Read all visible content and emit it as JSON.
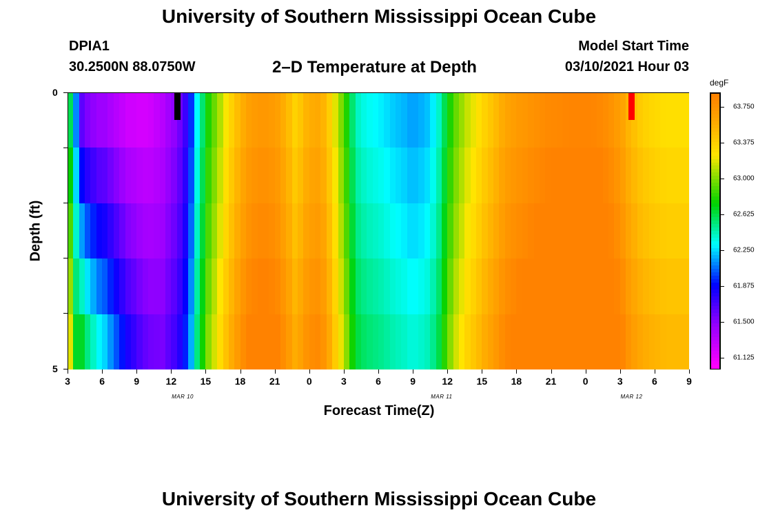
{
  "header": {
    "title": "University of Southern Mississippi Ocean Cube",
    "station": "DPIA1",
    "coords": "30.2500N 88.0750W",
    "plot_title": "2–D Temperature at Depth",
    "model_start_label": "Model Start Time",
    "model_start_value": "03/10/2021 Hour 03"
  },
  "footer": {
    "title": "University of Southern Mississippi Ocean Cube"
  },
  "chart_data": {
    "type": "heatmap",
    "title": "2–D Temperature at Depth",
    "xlabel": "Forecast Time(Z)",
    "ylabel": "Depth (ft)",
    "x_tick_labels": [
      "3",
      "6",
      "9",
      "12",
      "15",
      "18",
      "21",
      "0",
      "3",
      "6",
      "9",
      "12",
      "15",
      "18",
      "21",
      "0",
      "3",
      "6",
      "9"
    ],
    "x_range_hours": [
      0,
      54
    ],
    "date_labels": [
      {
        "text": "MAR 10",
        "hour": 10
      },
      {
        "text": "MAR 11",
        "hour": 32.5
      },
      {
        "text": "MAR 12",
        "hour": 49
      }
    ],
    "y_tick_labels": [
      "0",
      "5"
    ],
    "ylim": [
      0,
      5
    ],
    "depth_rows": [
      0,
      1,
      2,
      3,
      4
    ],
    "colorbar": {
      "units": "degF",
      "min": 61.0,
      "max": 63.9,
      "tick_values": [
        "63.750",
        "63.375",
        "63.000",
        "62.625",
        "62.250",
        "61.875",
        "61.500",
        "61.125"
      ]
    },
    "surface_temps_degF": [
      62.6,
      62.1,
      61.6,
      61.5,
      61.45,
      61.4,
      61.4,
      61.35,
      61.3,
      61.25,
      61.2,
      61.2,
      61.18,
      61.18,
      61.2,
      61.25,
      61.3,
      61.38,
      61.45,
      61.55,
      61.7,
      61.95,
      62.3,
      62.55,
      62.8,
      62.95,
      63.1,
      63.25,
      63.38,
      63.5,
      63.6,
      63.68,
      63.72,
      63.74,
      63.74,
      63.72,
      63.68,
      63.6,
      63.5,
      63.38,
      63.45,
      63.55,
      63.6,
      63.62,
      63.55,
      63.4,
      63.2,
      63.0,
      62.8,
      62.55,
      62.4,
      62.35,
      62.32,
      62.3,
      62.28,
      62.25,
      62.22,
      62.2,
      62.18,
      62.15,
      62.15,
      62.17,
      62.2,
      62.28,
      62.4,
      62.6,
      62.8,
      62.95,
      63.05,
      63.15,
      63.22,
      63.3,
      63.38,
      63.45,
      63.52,
      63.6,
      63.66,
      63.7,
      63.73,
      63.75,
      63.78,
      63.8,
      63.82,
      63.84,
      63.85,
      63.86,
      63.87,
      63.88,
      63.88,
      63.88,
      63.88,
      63.87,
      63.85,
      63.82,
      63.78,
      63.72,
      63.65,
      63.55,
      63.48,
      63.42,
      63.38,
      63.35,
      63.33,
      63.31,
      63.3,
      63.3,
      63.3,
      63.3
    ],
    "depth_offsets_degF": [
      0,
      0.05,
      0.1,
      0.16,
      0.22
    ],
    "min_marker": {
      "hour": 9.5,
      "depth": 0,
      "color": "#000000"
    },
    "max_marker": {
      "hour": 49,
      "depth": 0,
      "color": "#ff0000"
    }
  }
}
